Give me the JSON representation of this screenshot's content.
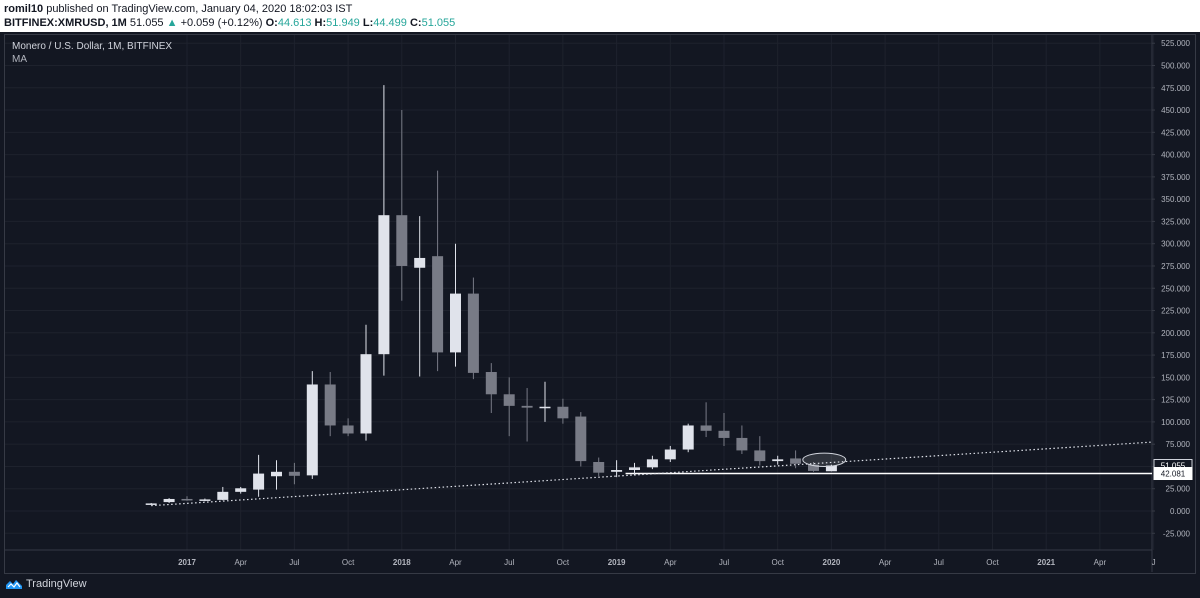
{
  "header": {
    "author": "romil10",
    "published_text": " published on TradingView.com, January 04, 2020 18:02:03 IST",
    "symbol": "BITFINEX:XMRUSD, 1M",
    "last": "51.055",
    "change_arrow": "▲",
    "change": "+0.059 (+0.12%)",
    "o_label": "O:",
    "o_value": "44.613",
    "h_label": "H:",
    "h_value": "51.949",
    "l_label": "L:",
    "l_value": "44.499",
    "c_label": "C:",
    "c_value": "51.055"
  },
  "legend": {
    "title": "Monero / U.S. Dollar, 1M, BITFINEX",
    "indicator": "MA"
  },
  "brand": {
    "name": "TradingView"
  },
  "colors": {
    "background": "#131722",
    "up": "#e0e3eb",
    "down": "#787b86",
    "grid": "#1e222d",
    "axis_text": "#b2b5be"
  },
  "chart_data": {
    "type": "candlestick",
    "symbol": "XMRUSD",
    "timeframe": "1M",
    "y_ticks": [
      "525.000",
      "500.000",
      "475.000",
      "450.000",
      "425.000",
      "400.000",
      "375.000",
      "350.000",
      "325.000",
      "300.000",
      "275.000",
      "250.000",
      "225.000",
      "200.000",
      "175.000",
      "150.000",
      "125.000",
      "100.000",
      "75.000",
      "50.000",
      "25.000",
      "0.000",
      "-25.000"
    ],
    "y_tick_values": [
      525,
      500,
      475,
      450,
      425,
      400,
      375,
      350,
      325,
      300,
      275,
      250,
      225,
      200,
      175,
      150,
      125,
      100,
      75,
      50,
      25,
      0,
      -25
    ],
    "ylim": [
      -35,
      535
    ],
    "x_ticks": [
      "2017",
      "Apr",
      "Jul",
      "Oct",
      "2018",
      "Apr",
      "Jul",
      "Oct",
      "2019",
      "Apr",
      "Jul",
      "Oct",
      "2020",
      "Apr",
      "Jul",
      "Oct",
      "2021",
      "Apr",
      "J"
    ],
    "x_tick_months": [
      24,
      27,
      30,
      33,
      36,
      39,
      42,
      45,
      48,
      51,
      54,
      57,
      60,
      63,
      66,
      69,
      72,
      75,
      78
    ],
    "x_tick_bold": [
      true,
      false,
      false,
      false,
      true,
      false,
      false,
      false,
      true,
      false,
      false,
      false,
      true,
      false,
      false,
      false,
      true,
      false,
      false
    ],
    "candles": [
      {
        "m": 22,
        "o": 7.5,
        "h": 9.0,
        "l": 7.0,
        "c": 8.5
      },
      {
        "m": 23,
        "o": 10.0,
        "h": 14.5,
        "l": 9.0,
        "c": 13.5
      },
      {
        "m": 24,
        "o": 13.5,
        "h": 16.5,
        "l": 11.5,
        "c": 12.5
      },
      {
        "m": 25,
        "o": 12.5,
        "h": 14.0,
        "l": 11.0,
        "c": 13.0
      },
      {
        "m": 26,
        "o": 12.5,
        "h": 27.0,
        "l": 12.0,
        "c": 21.5
      },
      {
        "m": 27,
        "o": 21.5,
        "h": 27.0,
        "l": 19.5,
        "c": 25.5
      },
      {
        "m": 28,
        "o": 24.0,
        "h": 63.0,
        "l": 16.0,
        "c": 42.0
      },
      {
        "m": 29,
        "o": 39.0,
        "h": 57.0,
        "l": 24.0,
        "c": 44.0
      },
      {
        "m": 30,
        "o": 44.0,
        "h": 54.0,
        "l": 30.0,
        "c": 39.5
      },
      {
        "m": 31,
        "o": 40.0,
        "h": 157.0,
        "l": 36.0,
        "c": 142.0
      },
      {
        "m": 32,
        "o": 142.0,
        "h": 156.0,
        "l": 84.0,
        "c": 96.0
      },
      {
        "m": 33,
        "o": 96.0,
        "h": 104.0,
        "l": 84.0,
        "c": 87.0
      },
      {
        "m": 34,
        "o": 87.0,
        "h": 209.0,
        "l": 79.0,
        "c": 176.0
      },
      {
        "m": 35,
        "o": 176.0,
        "h": 478.0,
        "l": 152.0,
        "c": 332.0
      },
      {
        "m": 36,
        "o": 332.0,
        "h": 450.0,
        "l": 236.0,
        "c": 275.0
      },
      {
        "m": 37,
        "o": 273.0,
        "h": 331.0,
        "l": 151.0,
        "c": 284.0
      },
      {
        "m": 38,
        "o": 286.0,
        "h": 382.0,
        "l": 157.0,
        "c": 178.0
      },
      {
        "m": 39,
        "o": 178.0,
        "h": 300.0,
        "l": 162.0,
        "c": 244.0
      },
      {
        "m": 40,
        "o": 244.0,
        "h": 262.0,
        "l": 148.0,
        "c": 155.0
      },
      {
        "m": 41,
        "o": 156.0,
        "h": 166.0,
        "l": 110.0,
        "c": 131.0
      },
      {
        "m": 42,
        "o": 131.0,
        "h": 150.0,
        "l": 84.0,
        "c": 118.0
      },
      {
        "m": 43,
        "o": 118.0,
        "h": 138.0,
        "l": 78.0,
        "c": 116.0
      },
      {
        "m": 44,
        "o": 117.0,
        "h": 145.0,
        "l": 100.0,
        "c": 117.0
      },
      {
        "m": 45,
        "o": 117.0,
        "h": 126.0,
        "l": 98.0,
        "c": 104.0
      },
      {
        "m": 46,
        "o": 106.0,
        "h": 111.0,
        "l": 50.0,
        "c": 56.0
      },
      {
        "m": 47,
        "o": 55.0,
        "h": 60.0,
        "l": 39.0,
        "c": 43.0
      },
      {
        "m": 48,
        "o": 44.0,
        "h": 57.0,
        "l": 38.0,
        "c": 46.0
      },
      {
        "m": 49,
        "o": 46.0,
        "h": 54.0,
        "l": 40.0,
        "c": 49.0
      },
      {
        "m": 50,
        "o": 49.0,
        "h": 62.0,
        "l": 47.0,
        "c": 58.0
      },
      {
        "m": 51,
        "o": 58.0,
        "h": 73.0,
        "l": 55.0,
        "c": 69.0
      },
      {
        "m": 52,
        "o": 69.0,
        "h": 98.0,
        "l": 66.0,
        "c": 96.0
      },
      {
        "m": 53,
        "o": 96.0,
        "h": 122.0,
        "l": 83.0,
        "c": 90.0
      },
      {
        "m": 54,
        "o": 90.0,
        "h": 110.0,
        "l": 73.0,
        "c": 82.0
      },
      {
        "m": 55,
        "o": 82.0,
        "h": 96.0,
        "l": 64.0,
        "c": 68.0
      },
      {
        "m": 56,
        "o": 68.0,
        "h": 84.0,
        "l": 51.0,
        "c": 56.0
      },
      {
        "m": 57,
        "o": 56.0,
        "h": 62.0,
        "l": 52.0,
        "c": 58.0
      },
      {
        "m": 58,
        "o": 59.0,
        "h": 68.0,
        "l": 48.0,
        "c": 53.0
      },
      {
        "m": 59,
        "o": 52.0,
        "h": 55.0,
        "l": 44.0,
        "c": 45.0
      },
      {
        "m": 60,
        "o": 44.613,
        "h": 51.949,
        "l": 44.499,
        "c": 51.055
      }
    ],
    "trendline": {
      "style": "dotted",
      "from": {
        "m": 22,
        "v": 6.0
      },
      "to": {
        "m": 80,
        "v": 80.0
      }
    },
    "horizontal_line": {
      "value": 42.081
    },
    "ellipse": {
      "m_center": 59.6,
      "v_center": 57.5,
      "m_radius": 1.2,
      "v_radius": 7.5
    },
    "price_labels": [
      {
        "text": "51.055",
        "value": 51.055,
        "style": "current"
      },
      {
        "text": "42.081",
        "value": 42.081,
        "style": "line"
      }
    ]
  }
}
